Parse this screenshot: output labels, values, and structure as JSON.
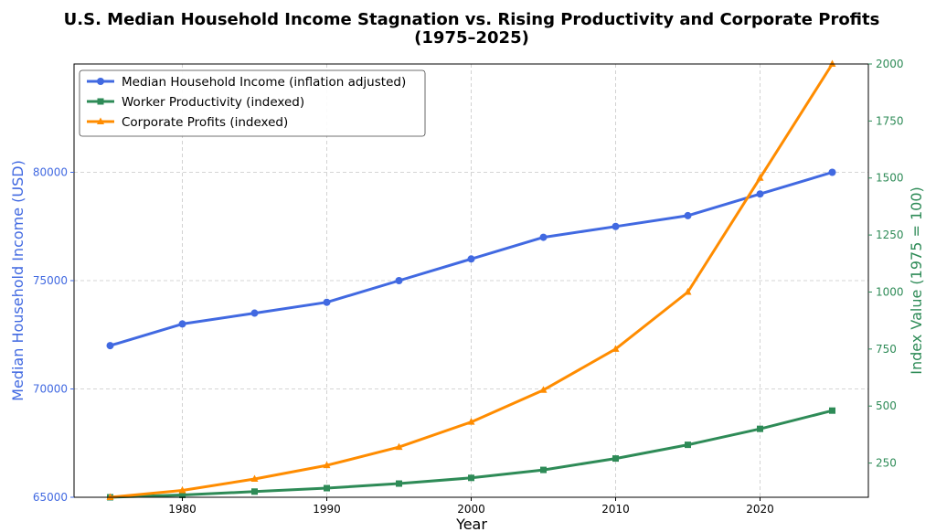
{
  "chart_data": {
    "type": "line",
    "title_lines": [
      "U.S. Median Household Income Stagnation vs. Rising Productivity and Corporate Profits",
      "(1975–2025)"
    ],
    "xlabel": "Year",
    "ylabel_left": "Median Household Income (USD)",
    "ylabel_right": "Index Value (1975 = 100)",
    "x": [
      1975,
      1980,
      1985,
      1990,
      1995,
      2000,
      2005,
      2010,
      2015,
      2020,
      2025
    ],
    "x_ticks": [
      1980,
      1990,
      2000,
      2010,
      2020
    ],
    "xlim": [
      1972.5,
      2027.5
    ],
    "ylim_left": [
      65000,
      85000
    ],
    "yticks_left": [
      65000,
      70000,
      75000,
      80000
    ],
    "ylim_right": [
      100,
      2000
    ],
    "yticks_right": [
      250,
      500,
      750,
      1000,
      1250,
      1500,
      1750,
      2000
    ],
    "grid": true,
    "legend_position": "top-left",
    "colors": {
      "left_axis": "#4169e1",
      "right_axis": "#2e8b57"
    },
    "series": [
      {
        "name": "Median Household Income (inflation adjusted)",
        "axis": "left",
        "color": "#4169e1",
        "marker": "circle",
        "values": [
          72000,
          73000,
          73500,
          74000,
          75000,
          76000,
          77000,
          77500,
          78000,
          79000,
          80000
        ]
      },
      {
        "name": "Worker Productivity (indexed)",
        "axis": "right",
        "color": "#2e8b57",
        "marker": "square",
        "values": [
          100,
          110,
          125,
          140,
          160,
          185,
          220,
          270,
          330,
          400,
          480
        ]
      },
      {
        "name": "Corporate Profits (indexed)",
        "axis": "right",
        "color": "#ff8c00",
        "marker": "triangle",
        "values": [
          100,
          130,
          180,
          240,
          320,
          430,
          570,
          750,
          1000,
          1500,
          2000
        ]
      }
    ]
  }
}
